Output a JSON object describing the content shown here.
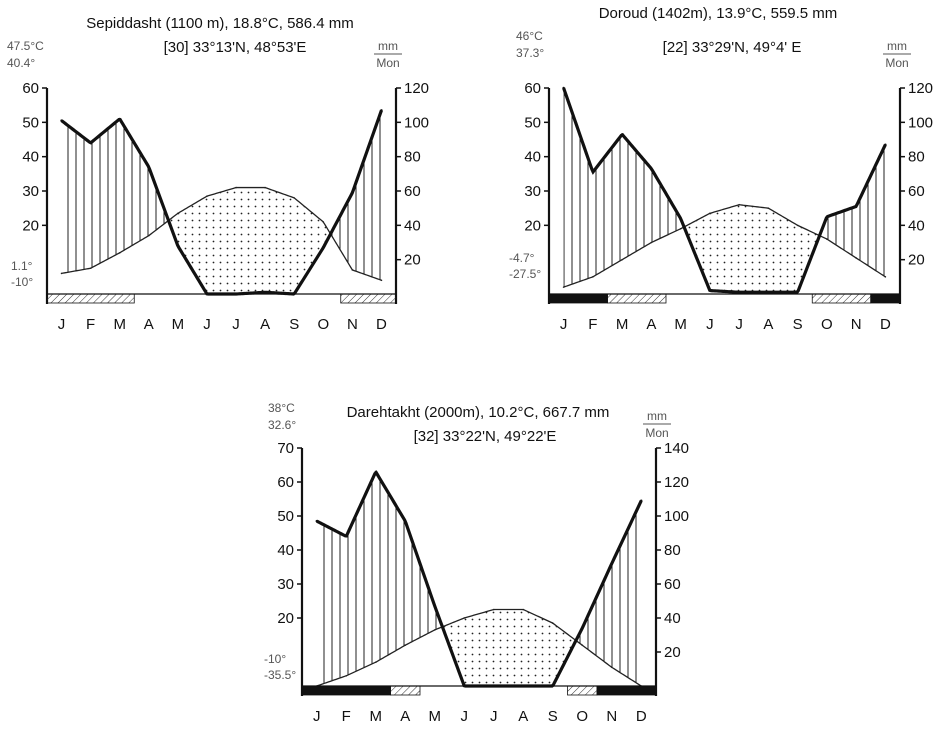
{
  "chart_data": [
    {
      "type": "climate-diagram",
      "title": "Sepiddasht (1100 m), 18.8°C, 586.4 mm",
      "subtitle": "[30] 33°13'N, 48°53'E",
      "temp_labels": [
        "47.5°C",
        "40.4°"
      ],
      "lower_labels": [
        "1.1°",
        "-10°"
      ],
      "precip_unit": [
        "mm",
        "Mon"
      ],
      "months": [
        "J",
        "F",
        "M",
        "A",
        "M",
        "J",
        "J",
        "A",
        "S",
        "O",
        "N",
        "D"
      ],
      "left_ticks": [
        60,
        50,
        40,
        30,
        20
      ],
      "right_ticks": [
        120,
        100,
        80,
        60,
        40,
        20
      ],
      "temp_ylim": [
        0,
        60
      ],
      "precip_ylim": [
        0,
        120
      ],
      "temperature": [
        6,
        7.5,
        12,
        17,
        23.5,
        28.5,
        31,
        31,
        28,
        21,
        7,
        4
      ],
      "precipitation": [
        101,
        88,
        102,
        74,
        28,
        0,
        0,
        1,
        0,
        27,
        59,
        107
      ],
      "bars": [
        {
          "kind": "frost-probable",
          "start": 0,
          "end": 3
        },
        {
          "kind": "frost-probable",
          "start": 10.1,
          "end": 12
        }
      ]
    },
    {
      "type": "climate-diagram",
      "title": "Doroud (1402m), 13.9°C, 559.5 mm",
      "subtitle": "[22] 33°29'N, 49°4' E",
      "temp_labels": [
        "46°C",
        "37.3°"
      ],
      "lower_labels": [
        "-4.7°",
        "-27.5°"
      ],
      "precip_unit": [
        "mm",
        "Mon"
      ],
      "months": [
        "J",
        "F",
        "M",
        "A",
        "M",
        "J",
        "J",
        "A",
        "S",
        "O",
        "N",
        "D"
      ],
      "left_ticks": [
        60,
        50,
        40,
        30,
        20
      ],
      "right_ticks": [
        120,
        100,
        80,
        60,
        40,
        20
      ],
      "temp_ylim": [
        0,
        60
      ],
      "precip_ylim": [
        0,
        120
      ],
      "temperature": [
        2,
        5,
        10,
        15,
        19,
        23.5,
        26,
        25,
        20,
        16,
        10.5,
        5
      ],
      "precipitation": [
        120,
        71,
        93,
        73,
        44,
        2,
        1,
        1,
        1,
        45,
        51,
        87
      ],
      "bars": [
        {
          "kind": "frost",
          "start": 0,
          "end": 2
        },
        {
          "kind": "frost-probable",
          "start": 2,
          "end": 4
        },
        {
          "kind": "frost-probable",
          "start": 9,
          "end": 11
        },
        {
          "kind": "frost",
          "start": 11,
          "end": 12
        }
      ]
    },
    {
      "type": "climate-diagram",
      "title": "Darehtakht (2000m), 10.2°C, 667.7 mm",
      "subtitle": "[32] 33°22'N, 49°22'E",
      "temp_labels": [
        "38°C",
        "32.6°"
      ],
      "lower_labels": [
        "-10°",
        "-35.5°"
      ],
      "precip_unit": [
        "mm",
        "Mon"
      ],
      "months": [
        "J",
        "F",
        "M",
        "A",
        "M",
        "J",
        "J",
        "A",
        "S",
        "O",
        "N",
        "D"
      ],
      "left_ticks": [
        70,
        60,
        50,
        40,
        30,
        20
      ],
      "right_ticks": [
        140,
        120,
        100,
        80,
        60,
        40,
        20
      ],
      "temp_ylim": [
        0,
        70
      ],
      "precip_ylim": [
        0,
        140
      ],
      "temperature": [
        0,
        3,
        7,
        12,
        16.5,
        20,
        22.5,
        22.5,
        18.5,
        12,
        5.5,
        0
      ],
      "precipitation": [
        97,
        88,
        126,
        97,
        47,
        0,
        0,
        0,
        0,
        34,
        72,
        109
      ],
      "bars": [
        {
          "kind": "frost",
          "start": 0,
          "end": 3
        },
        {
          "kind": "frost-probable",
          "start": 3,
          "end": 4
        },
        {
          "kind": "frost-probable",
          "start": 9,
          "end": 10
        },
        {
          "kind": "frost",
          "start": 10,
          "end": 12
        }
      ]
    }
  ]
}
